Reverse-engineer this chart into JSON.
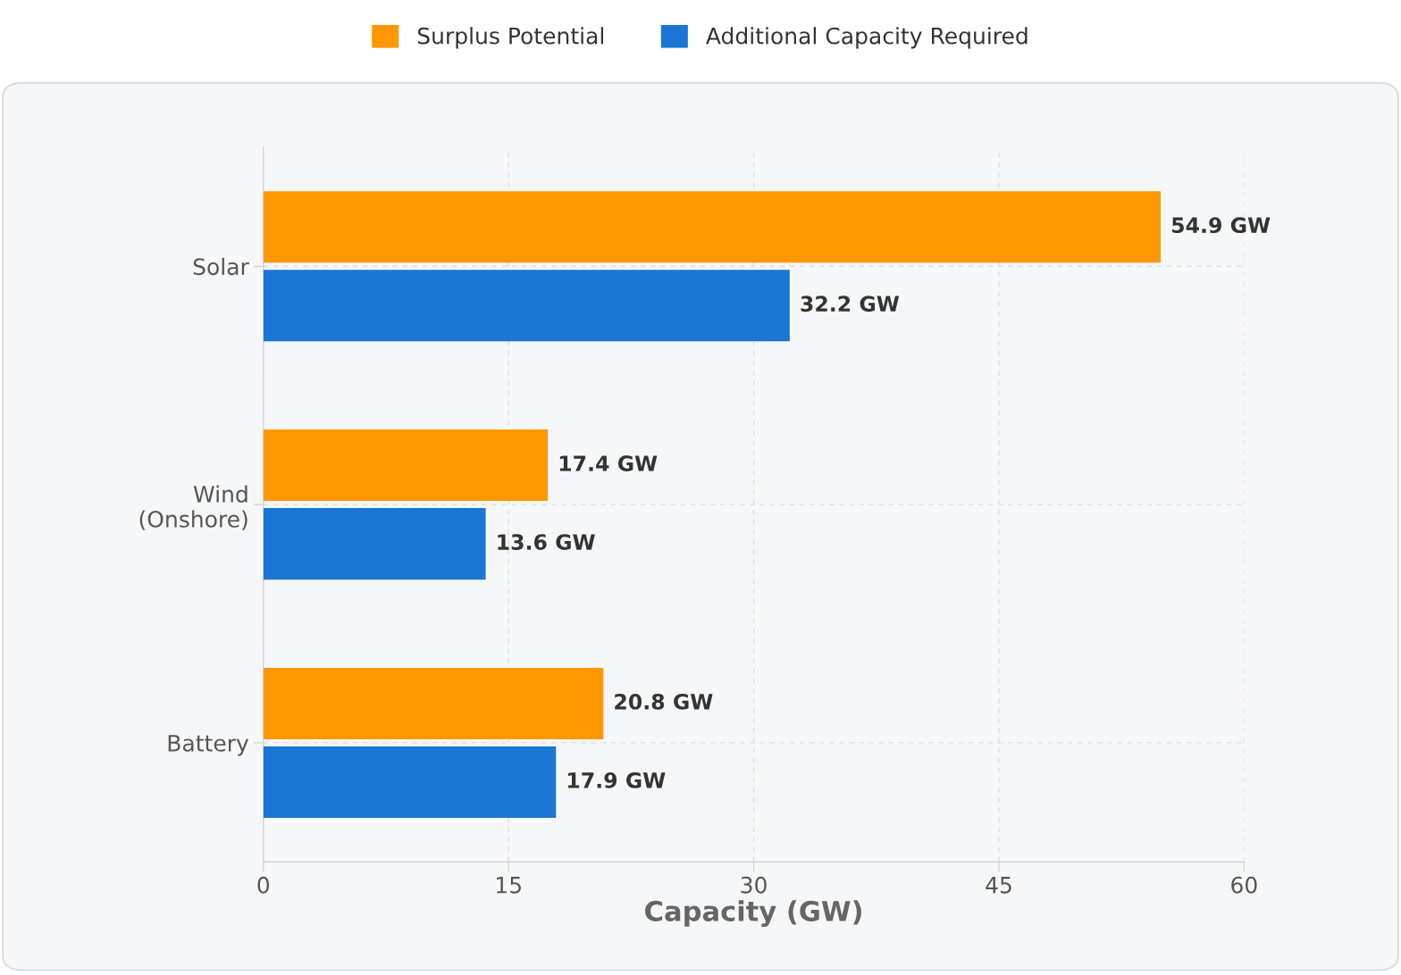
{
  "chart_data": {
    "type": "bar",
    "orientation": "horizontal",
    "xlabel": "Capacity (GW)",
    "categories": [
      "Solar",
      "Wind\n(Onshore)",
      "Battery"
    ],
    "series": [
      {
        "name": "Surplus Potential",
        "color": "#ff9800",
        "values": [
          54.9,
          17.4,
          20.8
        ],
        "value_labels": [
          "54.9 GW",
          "17.4 GW",
          "20.8 GW"
        ]
      },
      {
        "name": "Additional Capacity Required",
        "color": "#1976d2",
        "values": [
          32.2,
          13.6,
          17.9
        ],
        "value_labels": [
          "32.2 GW",
          "13.6 GW",
          "17.9 GW"
        ]
      }
    ],
    "xlim": [
      0,
      60
    ],
    "xticks": [
      0,
      15,
      30,
      45,
      60
    ],
    "grid": true,
    "legend": "top"
  }
}
